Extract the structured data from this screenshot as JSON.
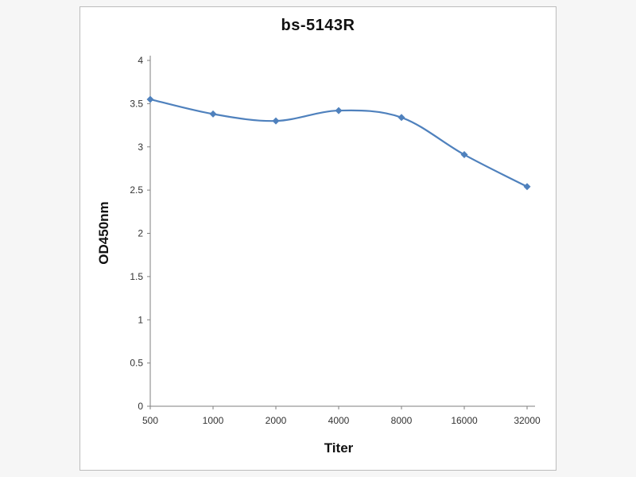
{
  "page": {
    "background": "#f6f6f6"
  },
  "panel": {
    "background": "#ffffff",
    "border_color": "#bcbcbc"
  },
  "chart_data": {
    "type": "line",
    "title": "bs-5143R",
    "xlabel": "Titer",
    "ylabel": "OD450nm",
    "categories": [
      "500",
      "1000",
      "2000",
      "4000",
      "8000",
      "16000",
      "32000"
    ],
    "values": [
      3.55,
      3.38,
      3.3,
      3.42,
      3.34,
      2.91,
      2.54
    ],
    "ylim": [
      0,
      4
    ],
    "ytick_step": 0.5,
    "grid": false,
    "legend": "none",
    "marker": "diamond",
    "line_color": "#4f81bd",
    "axis_color": "#7f7f7f",
    "tick_label_color": "#333333"
  }
}
